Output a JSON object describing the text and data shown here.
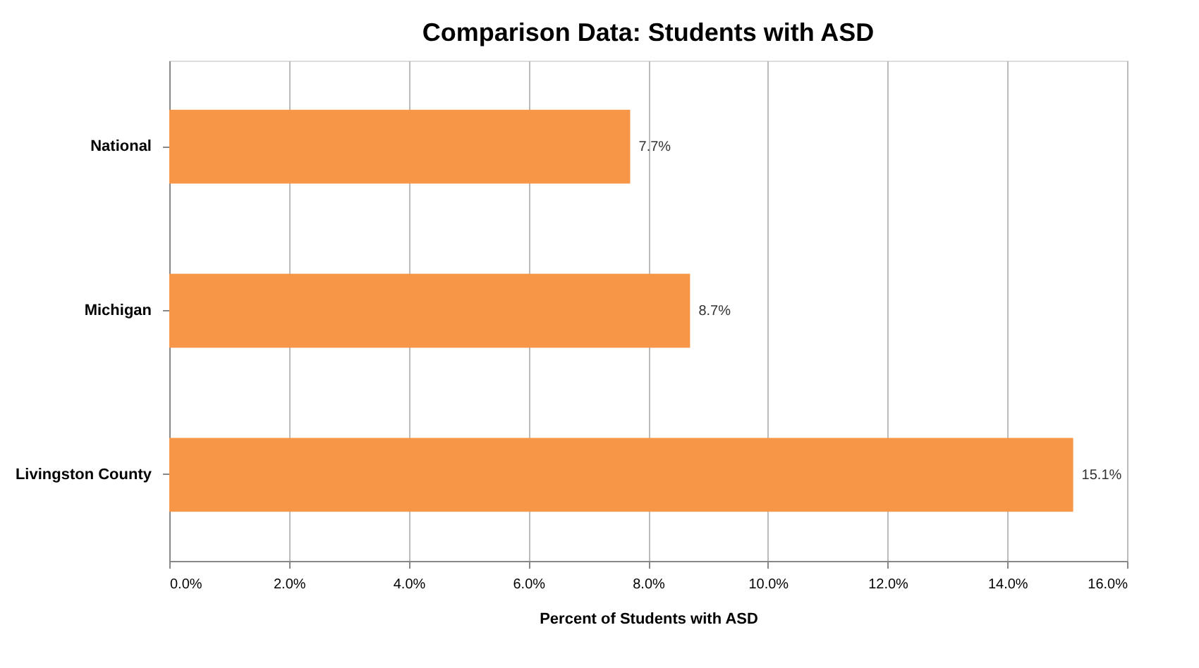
{
  "chart_data": {
    "type": "bar",
    "orientation": "horizontal",
    "title": "Comparison Data: Students with ASD",
    "xlabel": "Percent of Students with ASD",
    "categories": [
      "National",
      "Michigan",
      "Livingston County"
    ],
    "values": [
      7.7,
      8.7,
      15.1
    ],
    "value_labels": [
      "7.7%",
      "8.7%",
      "15.1%"
    ],
    "color": "#f79646",
    "xlim": [
      0,
      16
    ],
    "xticks": [
      {
        "value": 0,
        "label": "0.0%"
      },
      {
        "value": 2,
        "label": "2.0%"
      },
      {
        "value": 4,
        "label": "4.0%"
      },
      {
        "value": 6,
        "label": "6.0%"
      },
      {
        "value": 8,
        "label": "8.0%"
      },
      {
        "value": 10,
        "label": "10.0%"
      },
      {
        "value": 12,
        "label": "12.0%"
      },
      {
        "value": 14,
        "label": "14.0%"
      },
      {
        "value": 16,
        "label": "16.0%"
      }
    ],
    "grid": "x"
  }
}
